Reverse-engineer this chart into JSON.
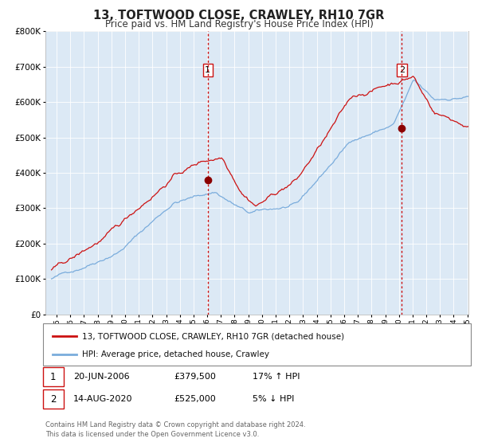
{
  "title": "13, TOFTWOOD CLOSE, CRAWLEY, RH10 7GR",
  "subtitle": "Price paid vs. HM Land Registry's House Price Index (HPI)",
  "legend_line1": "13, TOFTWOOD CLOSE, CRAWLEY, RH10 7GR (detached house)",
  "legend_line2": "HPI: Average price, detached house, Crawley",
  "transaction1_date": "20-JUN-2006",
  "transaction1_price": 379500,
  "transaction1_label": "1",
  "transaction1_hpi": "17% ↑ HPI",
  "transaction2_date": "14-AUG-2020",
  "transaction2_price": 525000,
  "transaction2_label": "2",
  "transaction2_hpi": "5% ↓ HPI",
  "footer": "Contains HM Land Registry data © Crown copyright and database right 2024.\nThis data is licensed under the Open Government Licence v3.0.",
  "hpi_color": "#7aacdc",
  "price_color": "#cc1111",
  "dot_color": "#8b0000",
  "vline_color": "#cc1111",
  "bg_color": "#dce9f5",
  "grid_color": "#ffffff",
  "ylim": [
    0,
    800000
  ],
  "yticks": [
    0,
    100000,
    200000,
    300000,
    400000,
    500000,
    600000,
    700000,
    800000
  ],
  "start_year": 1995,
  "end_year": 2025
}
